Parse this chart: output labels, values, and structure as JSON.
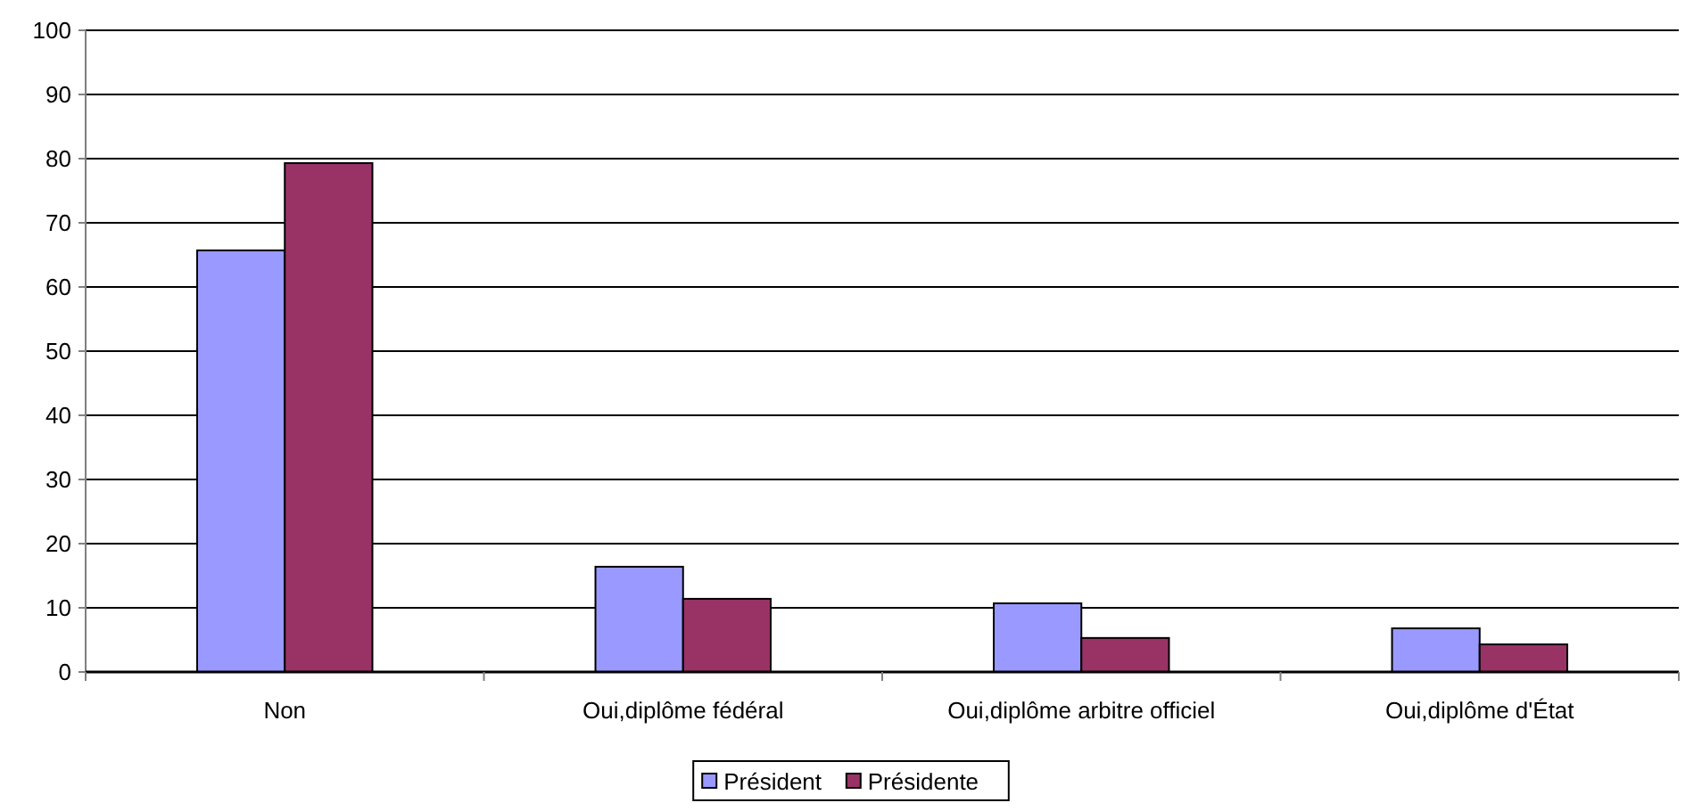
{
  "chart_data": {
    "type": "bar",
    "categories": [
      "Non",
      "Oui,diplôme fédéral",
      "Oui,diplôme arbitre officiel",
      "Oui,diplôme d'État"
    ],
    "series": [
      {
        "name": "Président",
        "color": "#9999ff",
        "values": [
          65.7,
          16.4,
          10.7,
          6.8
        ]
      },
      {
        "name": "Présidente",
        "color": "#993366",
        "values": [
          79.3,
          11.4,
          5.3,
          4.3
        ]
      }
    ],
    "ylim": [
      0,
      100
    ],
    "yticks": [
      0,
      10,
      20,
      30,
      40,
      50,
      60,
      70,
      80,
      90,
      100
    ],
    "grid": "y",
    "legend": "bottom"
  }
}
